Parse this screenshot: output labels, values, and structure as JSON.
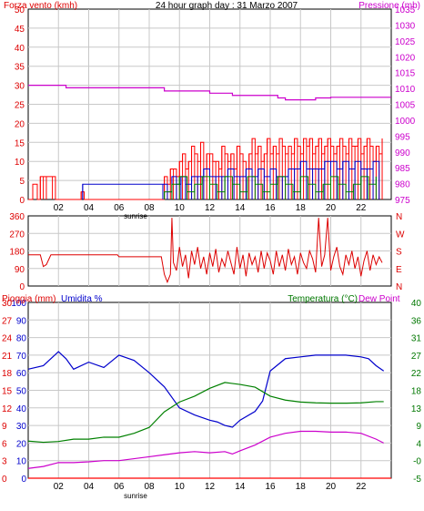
{
  "colors": {
    "wind": "#ff0000",
    "gust": "#0000cc",
    "avg": "#008000",
    "pressure": "#cc00cc",
    "direction": "#dd0000",
    "rain": "#ff0000",
    "humidity": "#0000cc",
    "temperature": "#008000",
    "dewpoint": "#cc00cc",
    "label_red": "#dd0000",
    "label_blue": "#0000cc",
    "label_green": "#007700",
    "label_magenta": "#cc00cc",
    "frame": "#000000",
    "grid": "#c8c8c8"
  },
  "x_ticks": [
    "02",
    "04",
    "06",
    "08",
    "10",
    "12",
    "14",
    "16",
    "18",
    "20",
    "22"
  ],
  "sunrise_label": "sunrise",
  "chart_data": [
    {
      "type": "bar",
      "title": "24 hour graph day : 31 Marzo 2007",
      "ylabel_left": "Forza vento (kmh)",
      "ylabel_right": "Pressione (mb)",
      "ylim_left": [
        0,
        50
      ],
      "yticks_left": [
        "0",
        "5",
        "10",
        "15",
        "20",
        "25",
        "30",
        "35",
        "40",
        "45",
        "50"
      ],
      "ylim_right": [
        975,
        1035
      ],
      "yticks_right": [
        "975",
        "980",
        "985",
        "990",
        "995",
        "1000",
        "1005",
        "1010",
        "1015",
        "1020",
        "1025",
        "1030",
        "1035"
      ],
      "xlim": [
        0,
        24
      ],
      "grid": true,
      "series": [
        {
          "name": "wind",
          "x": [
            0.0,
            0.3,
            0.6,
            0.8,
            1.0,
            1.2,
            1.6,
            1.8,
            2.0,
            3.5,
            3.7,
            3.9,
            8.8,
            9.0,
            9.2,
            9.4,
            9.6,
            9.8,
            10.0,
            10.2,
            10.4,
            10.6,
            10.8,
            11.0,
            11.2,
            11.4,
            11.6,
            11.8,
            12.0,
            12.2,
            12.4,
            12.6,
            12.8,
            13.0,
            13.2,
            13.4,
            13.6,
            13.8,
            14.0,
            14.2,
            14.4,
            14.6,
            14.8,
            15.0,
            15.2,
            15.4,
            15.6,
            15.8,
            16.0,
            16.2,
            16.4,
            16.6,
            16.8,
            17.0,
            17.2,
            17.4,
            17.6,
            17.8,
            18.0,
            18.2,
            18.4,
            18.6,
            18.8,
            19.0,
            19.2,
            19.4,
            19.6,
            19.8,
            20.0,
            20.2,
            20.4,
            20.6,
            20.8,
            21.0,
            21.2,
            21.4,
            21.6,
            21.8,
            22.0,
            22.2,
            22.4,
            22.6,
            22.8,
            23.0,
            23.2,
            23.4
          ],
          "values": [
            0,
            4,
            0,
            6,
            6,
            6,
            6,
            0,
            0,
            2,
            0,
            0,
            0,
            6,
            4,
            8,
            8,
            6,
            10,
            12,
            8,
            10,
            14,
            12,
            10,
            15,
            8,
            12,
            12,
            10,
            10,
            8,
            14,
            12,
            10,
            12,
            8,
            14,
            12,
            10,
            8,
            12,
            16,
            12,
            14,
            10,
            12,
            16,
            12,
            14,
            12,
            16,
            14,
            12,
            14,
            12,
            16,
            14,
            12,
            16,
            14,
            16,
            12,
            14,
            16,
            12,
            14,
            16,
            14,
            12,
            14,
            16,
            14,
            12,
            16,
            14,
            14,
            16,
            12,
            14,
            16,
            14,
            10,
            14,
            12,
            16
          ]
        },
        {
          "name": "gust",
          "x": [
            3.6,
            8.9,
            9.2,
            9.5,
            9.8,
            10.1,
            10.4,
            10.8,
            11.2,
            11.6,
            12.0,
            12.4,
            12.8,
            13.2,
            13.6,
            14.0,
            14.4,
            14.8,
            15.2,
            15.6,
            16.0,
            16.4,
            16.8,
            17.2,
            17.6,
            18.0,
            18.4,
            18.8,
            19.2,
            19.6,
            20.0,
            20.4,
            20.8,
            21.2,
            21.6,
            22.0,
            22.4,
            22.8,
            23.2
          ],
          "values": [
            4,
            4,
            2,
            6,
            4,
            6,
            4,
            6,
            6,
            8,
            6,
            6,
            6,
            8,
            6,
            6,
            8,
            6,
            8,
            6,
            8,
            6,
            6,
            8,
            8,
            10,
            8,
            8,
            8,
            10,
            10,
            8,
            10,
            8,
            10,
            8,
            8,
            10,
            8
          ]
        },
        {
          "name": "avg",
          "x": [
            9.0,
            9.5,
            10.0,
            10.5,
            11.0,
            11.5,
            12.0,
            12.5,
            13.0,
            13.5,
            14.0,
            14.5,
            15.0,
            15.5,
            16.0,
            16.5,
            17.0,
            17.5,
            18.0,
            18.5,
            19.0,
            19.5,
            20.0,
            20.5,
            21.0,
            21.5,
            22.0,
            22.5,
            23.0
          ],
          "values": [
            2,
            4,
            6,
            2,
            4,
            6,
            4,
            2,
            6,
            4,
            2,
            6,
            4,
            2,
            4,
            6,
            4,
            2,
            6,
            4,
            2,
            4,
            6,
            4,
            2,
            4,
            6,
            4,
            6
          ]
        },
        {
          "name": "pressure",
          "axis": "right",
          "x": [
            0,
            2.0,
            2.5,
            6.0,
            9.0,
            12.0,
            13.5,
            14.0,
            16.5,
            17.0,
            18.0,
            19.0,
            20.0,
            24.0
          ],
          "values": [
            1011.0,
            1011.0,
            1010.2,
            1010.2,
            1009.2,
            1008.5,
            1007.8,
            1007.8,
            1007.0,
            1006.4,
            1006.4,
            1007.0,
            1007.2,
            1007.2
          ]
        }
      ]
    },
    {
      "type": "scatter",
      "ylim": [
        0,
        360
      ],
      "yticks_left": [
        "0",
        "90",
        "180",
        "270",
        "360"
      ],
      "yticks_right": [
        "N",
        "E",
        "S",
        "W",
        "N"
      ],
      "xlim": [
        0,
        24
      ],
      "grid": true,
      "series": [
        {
          "name": "direction",
          "x": [
            0,
            0.8,
            1.0,
            1.2,
            1.5,
            1.8,
            2.0,
            4.0,
            5.9,
            6.0,
            8.8,
            9.0,
            9.2,
            9.4,
            9.5,
            9.6,
            9.8,
            10.0,
            10.2,
            10.4,
            10.6,
            10.8,
            11.0,
            11.2,
            11.4,
            11.6,
            11.8,
            12.0,
            12.2,
            12.4,
            12.6,
            12.8,
            13.0,
            13.2,
            13.4,
            13.6,
            13.8,
            14.0,
            14.2,
            14.4,
            14.6,
            14.8,
            15.0,
            15.2,
            15.4,
            15.6,
            15.8,
            16.0,
            16.2,
            16.4,
            16.6,
            16.8,
            17.0,
            17.2,
            17.4,
            17.6,
            17.8,
            18.0,
            18.2,
            18.4,
            18.6,
            18.8,
            19.0,
            19.2,
            19.4,
            19.6,
            19.8,
            20.0,
            20.2,
            20.4,
            20.6,
            20.8,
            21.0,
            21.2,
            21.4,
            21.6,
            21.8,
            22.0,
            22.2,
            22.4,
            22.6,
            22.8,
            23.0,
            23.2,
            23.4
          ],
          "values": [
            160,
            160,
            100,
            110,
            160,
            160,
            160,
            160,
            160,
            150,
            150,
            60,
            20,
            60,
            350,
            120,
            80,
            200,
            100,
            160,
            40,
            180,
            110,
            200,
            90,
            150,
            60,
            170,
            100,
            190,
            70,
            140,
            100,
            180,
            120,
            60,
            200,
            90,
            160,
            50,
            170,
            110,
            150,
            70,
            180,
            90,
            170,
            130,
            60,
            180,
            100,
            160,
            80,
            190,
            110,
            150,
            60,
            170,
            120,
            90,
            180,
            140,
            70,
            350,
            100,
            160,
            350,
            80,
            150,
            200,
            100,
            60,
            160,
            110,
            180,
            90,
            150,
            50,
            130,
            180,
            80,
            160,
            110,
            150,
            120
          ]
        }
      ]
    },
    {
      "type": "line",
      "ylabel_left_1": "Pioggia (mm)",
      "ylabel_left_2": "Umidita %",
      "ylabel_right_1": "Temperatura (°C)",
      "ylabel_right_2": "Dew Point",
      "yticks_rain": [
        "0",
        "3",
        "6",
        "9",
        "12",
        "15",
        "18",
        "21",
        "24",
        "27",
        "30"
      ],
      "yticks_humidity": [
        "0",
        "10",
        "20",
        "30",
        "40",
        "50",
        "60",
        "70",
        "80",
        "90",
        "100"
      ],
      "yticks_temp": [
        "-5",
        "-0",
        "4",
        "9",
        "13",
        "18",
        "22",
        "27",
        "31",
        "36",
        "40"
      ],
      "ylim_rain": [
        0,
        30
      ],
      "ylim_humidity": [
        0,
        100
      ],
      "ylim_temp": [
        -5,
        40
      ],
      "xlim": [
        0,
        24
      ],
      "grid": true,
      "series": [
        {
          "name": "rain",
          "axis": "rain",
          "x": [
            0,
            24
          ],
          "values": [
            0,
            0
          ]
        },
        {
          "name": "humidity",
          "axis": "humidity",
          "x": [
            0,
            1,
            2,
            2.5,
            3,
            4,
            5,
            6,
            7,
            8,
            9,
            10,
            11,
            12,
            12.5,
            13,
            13.5,
            14,
            15,
            15.5,
            16,
            17,
            18,
            19,
            20,
            21,
            22,
            22.5,
            23,
            23.5
          ],
          "values": [
            62,
            64,
            72,
            68,
            62,
            66,
            63,
            70,
            67,
            60,
            52,
            40,
            36,
            33,
            32,
            30,
            29,
            33,
            38,
            44,
            61,
            68,
            69,
            70,
            70,
            70,
            69,
            68,
            64,
            61
          ]
        },
        {
          "name": "temperature",
          "axis": "temp",
          "x": [
            0,
            1,
            2,
            3,
            4,
            5,
            6,
            7,
            8,
            9,
            10,
            11,
            12,
            13,
            14,
            15,
            16,
            17,
            18,
            19,
            20,
            21,
            22,
            23,
            23.5
          ],
          "values": [
            4.5,
            4.2,
            4.4,
            5.0,
            5.0,
            5.5,
            5.5,
            6.5,
            8.0,
            12.0,
            14.5,
            16.0,
            18.0,
            19.5,
            19.0,
            18.3,
            16.0,
            15.0,
            14.5,
            14.3,
            14.2,
            14.2,
            14.3,
            14.6,
            14.6
          ]
        },
        {
          "name": "dewpoint",
          "axis": "temp",
          "x": [
            0,
            1,
            2,
            3,
            4,
            5,
            6,
            7,
            8,
            9,
            10,
            11,
            12,
            13,
            13.5,
            14,
            15,
            16,
            17,
            18,
            19,
            20,
            21,
            22,
            23,
            23.5
          ],
          "values": [
            -2.5,
            -2.0,
            -1.0,
            -1.0,
            -0.8,
            -0.5,
            -0.5,
            0,
            0.5,
            1.0,
            1.5,
            1.8,
            1.5,
            1.8,
            1.2,
            2.0,
            3.5,
            5.5,
            6.5,
            7.0,
            7.0,
            6.8,
            6.8,
            6.5,
            5.0,
            4.0
          ]
        }
      ]
    }
  ]
}
